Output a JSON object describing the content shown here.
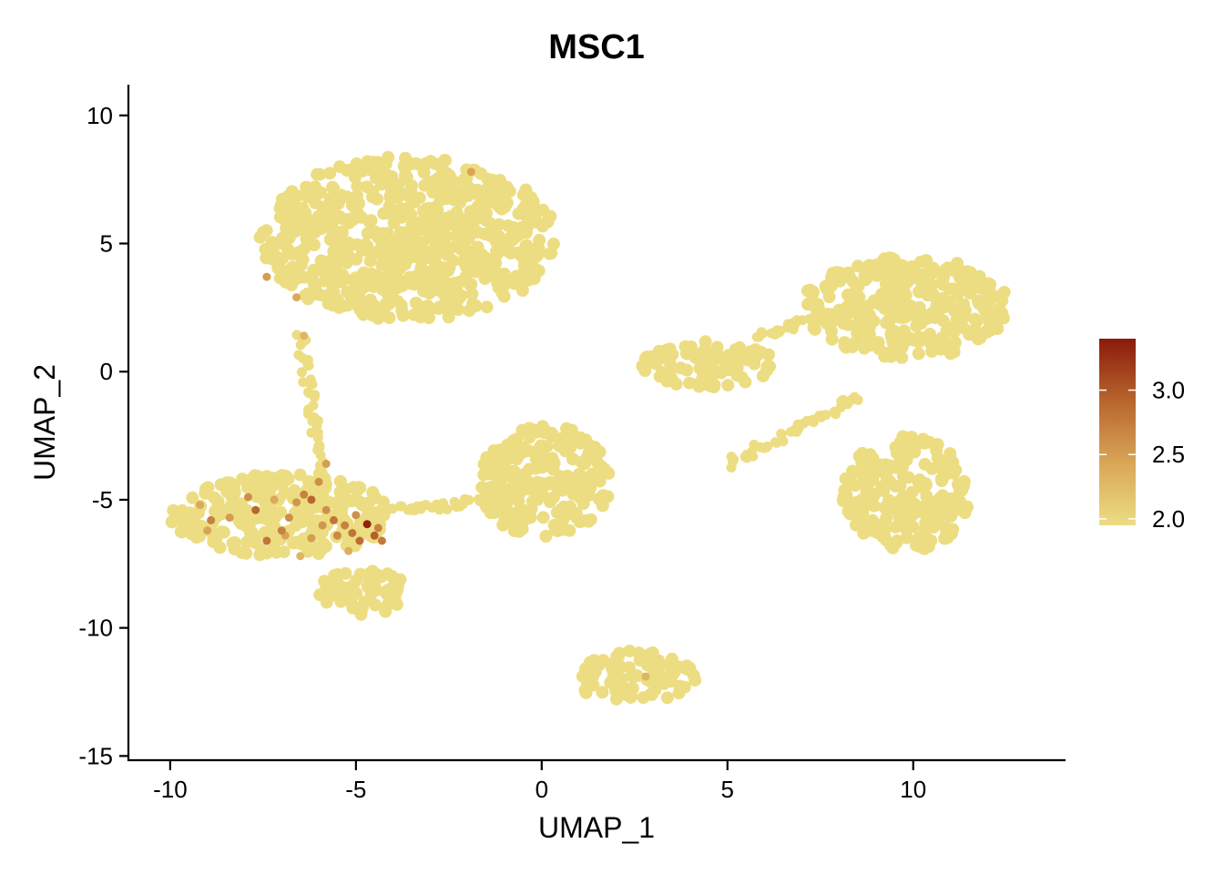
{
  "chart_data": {
    "type": "scatter",
    "title": "MSC1",
    "xlabel": "UMAP_1",
    "ylabel": "UMAP_2",
    "xlim": [
      -11.1,
      14.1
    ],
    "ylim": [
      -15.2,
      11.2
    ],
    "xticks": [
      -10,
      -5,
      0,
      5,
      10
    ],
    "xtick_labels": [
      "-10",
      "-5",
      "0",
      "5",
      "10"
    ],
    "yticks": [
      -15,
      -10,
      -5,
      0,
      5,
      10
    ],
    "ytick_labels": [
      "-15",
      "-10",
      "-5",
      "0",
      "5",
      "10"
    ],
    "grid": false,
    "legend": {
      "type": "colorbar",
      "placement": "right",
      "range": [
        1.95,
        3.4
      ],
      "ticks": [
        2.0,
        2.5,
        3.0
      ],
      "tick_labels": [
        "2.0",
        "2.5",
        "3.0"
      ],
      "colors": [
        "#EDDD82",
        "#D9A657",
        "#B8652E",
        "#8B1A0A"
      ]
    },
    "point_color_low": "#EDDD82",
    "point_color_high": "#8B1A0A",
    "clusters": [
      {
        "cx": -3.6,
        "cy": 5.2,
        "rx": 4.0,
        "ry": 3.2
      },
      {
        "cx": 9.8,
        "cy": 2.5,
        "rx": 2.8,
        "ry": 2.0
      },
      {
        "cx": 4.5,
        "cy": 0.3,
        "rx": 1.8,
        "ry": 0.9
      },
      {
        "cx": 9.8,
        "cy": -4.8,
        "rx": 1.7,
        "ry": 2.3
      },
      {
        "cx": 0.1,
        "cy": -4.3,
        "rx": 1.8,
        "ry": 2.2
      },
      {
        "cx": -7.0,
        "cy": -5.6,
        "rx": 3.0,
        "ry": 1.6
      },
      {
        "cx": -4.8,
        "cy": -8.6,
        "rx": 1.2,
        "ry": 0.9
      },
      {
        "cx": 2.5,
        "cy": -11.9,
        "rx": 1.7,
        "ry": 1.0
      }
    ],
    "bridges": [
      [
        [
          -6.5,
          1.5
        ],
        [
          -5.9,
          -4.0
        ]
      ],
      [
        [
          -4.5,
          -5.5
        ],
        [
          -1.0,
          -5.0
        ]
      ],
      [
        [
          5.0,
          -3.6
        ],
        [
          8.5,
          -1.0
        ]
      ],
      [
        [
          5.8,
          1.4
        ],
        [
          8.2,
          2.4
        ]
      ]
    ],
    "highlight_points": [
      {
        "x": -4.7,
        "y": -5.95,
        "v": 3.35
      },
      {
        "x": -4.5,
        "y": -6.4,
        "v": 2.95
      },
      {
        "x": -4.9,
        "y": -6.6,
        "v": 2.85
      },
      {
        "x": -5.1,
        "y": -6.3,
        "v": 2.8
      },
      {
        "x": -4.3,
        "y": -6.6,
        "v": 2.75
      },
      {
        "x": -5.3,
        "y": -6.0,
        "v": 2.7
      },
      {
        "x": -5.6,
        "y": -5.8,
        "v": 2.8
      },
      {
        "x": -5.8,
        "y": -5.4,
        "v": 2.6
      },
      {
        "x": -6.2,
        "y": -5.0,
        "v": 2.9
      },
      {
        "x": -6.4,
        "y": -4.8,
        "v": 2.7
      },
      {
        "x": -6.0,
        "y": -4.3,
        "v": 2.6
      },
      {
        "x": -5.8,
        "y": -3.6,
        "v": 2.5
      },
      {
        "x": -6.6,
        "y": -5.1,
        "v": 2.55
      },
      {
        "x": -6.8,
        "y": -5.7,
        "v": 2.6
      },
      {
        "x": -7.0,
        "y": -6.2,
        "v": 2.7
      },
      {
        "x": -7.4,
        "y": -6.6,
        "v": 2.8
      },
      {
        "x": -7.7,
        "y": -5.4,
        "v": 2.9
      },
      {
        "x": -7.9,
        "y": -4.9,
        "v": 2.6
      },
      {
        "x": -8.4,
        "y": -5.7,
        "v": 2.5
      },
      {
        "x": -8.9,
        "y": -5.8,
        "v": 2.7
      },
      {
        "x": -9.2,
        "y": -5.2,
        "v": 2.4
      },
      {
        "x": -9.0,
        "y": -6.2,
        "v": 2.45
      },
      {
        "x": -6.2,
        "y": -6.5,
        "v": 2.5
      },
      {
        "x": -5.9,
        "y": -6.0,
        "v": 2.55
      },
      {
        "x": -5.5,
        "y": -6.4,
        "v": 2.65
      },
      {
        "x": -5.0,
        "y": -5.6,
        "v": 2.6
      },
      {
        "x": -4.4,
        "y": -6.1,
        "v": 2.7
      },
      {
        "x": -7.2,
        "y": -5.0,
        "v": 2.4
      },
      {
        "x": -6.9,
        "y": -6.4,
        "v": 2.45
      },
      {
        "x": -5.2,
        "y": -7.0,
        "v": 2.35
      },
      {
        "x": -6.5,
        "y": -7.2,
        "v": 2.3
      },
      {
        "x": -7.4,
        "y": 3.7,
        "v": 2.5
      },
      {
        "x": -6.6,
        "y": 2.9,
        "v": 2.4
      },
      {
        "x": -6.4,
        "y": 1.4,
        "v": 2.3
      },
      {
        "x": -1.9,
        "y": 7.8,
        "v": 2.45
      },
      {
        "x": 2.8,
        "y": -11.9,
        "v": 2.3
      }
    ]
  }
}
